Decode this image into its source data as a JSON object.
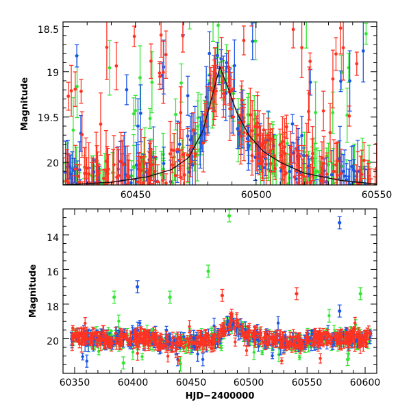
{
  "chart_data": [
    {
      "type": "scatter",
      "panel": "top",
      "xlabel": "",
      "ylabel": "Magnitude",
      "xlim": [
        60420,
        60550
      ],
      "ylim": [
        20.25,
        18.45
      ],
      "y_inverted": true,
      "x_ticks": [
        60450,
        60500,
        60550
      ],
      "y_ticks": [
        18.5,
        19,
        19.5,
        20
      ],
      "x_tick_labels": [
        "60450",
        "60500",
        "60550"
      ],
      "y_tick_labels": [
        "18.5",
        "19",
        "19.5",
        "20"
      ],
      "grid": false,
      "colors": {
        "green": "#33e633",
        "blue": "#1a55e6",
        "red": "#ff3322",
        "model": "#111111"
      },
      "model_curve": {
        "x": [
          60420,
          60440,
          60455,
          60465,
          60472,
          60478,
          60482,
          60485,
          60488,
          60492,
          60497,
          60503,
          60510,
          60520,
          60535,
          60550
        ],
        "y": [
          20.25,
          20.22,
          20.16,
          20.08,
          19.95,
          19.65,
          19.25,
          18.95,
          19.15,
          19.45,
          19.7,
          19.88,
          20.0,
          20.12,
          20.2,
          20.24
        ]
      }
    },
    {
      "type": "scatter",
      "panel": "bottom",
      "xlabel": "HJD−2400000",
      "ylabel": "Magnitude",
      "xlim": [
        60340,
        60610
      ],
      "ylim": [
        22.0,
        12.5
      ],
      "y_inverted": true,
      "x_ticks": [
        60350,
        60400,
        60450,
        60500,
        60550,
        60600
      ],
      "y_ticks": [
        14,
        16,
        18,
        20
      ],
      "x_tick_labels": [
        "60350",
        "60400",
        "60450",
        "60500",
        "60550",
        "60600"
      ],
      "y_tick_labels": [
        "14",
        "16",
        "18",
        "20"
      ],
      "grid": false,
      "outliers": [
        {
          "color": "green",
          "x": 60483,
          "y": 12.9
        },
        {
          "color": "blue",
          "x": 60578,
          "y": 13.3
        },
        {
          "color": "green",
          "x": 60465,
          "y": 16.1
        },
        {
          "color": "blue",
          "x": 60404,
          "y": 17.0
        },
        {
          "color": "green",
          "x": 60384,
          "y": 17.6
        },
        {
          "color": "green",
          "x": 60432,
          "y": 17.6
        },
        {
          "color": "red",
          "x": 60477,
          "y": 17.5
        },
        {
          "color": "red",
          "x": 60541,
          "y": 17.4
        },
        {
          "color": "green",
          "x": 60596,
          "y": 17.4
        },
        {
          "color": "blue",
          "x": 60578,
          "y": 18.4
        },
        {
          "color": "green",
          "x": 60392,
          "y": 21.4
        },
        {
          "color": "green",
          "x": 60585,
          "y": 21.2
        }
      ]
    }
  ]
}
